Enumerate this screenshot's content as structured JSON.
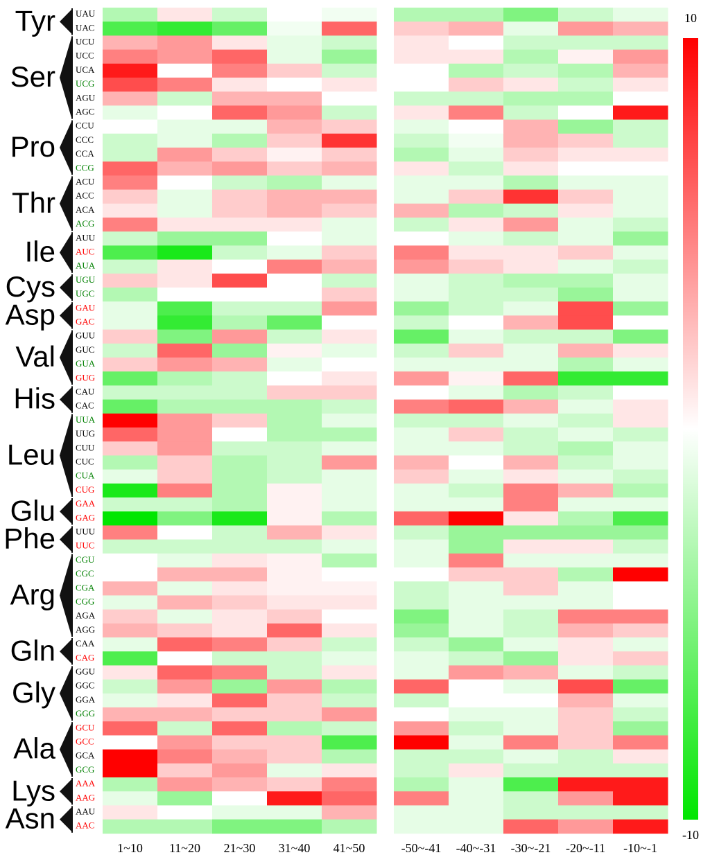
{
  "chart_data": {
    "type": "heatmap",
    "categories": [
      "1~10",
      "11~20",
      "21~30",
      "31~40",
      "41~50",
      "-50~-41",
      "-40~-31",
      "-30~-21",
      "-20~-11",
      "-10~-1"
    ],
    "colormap": {
      "low": "#00e600",
      "mid": "#ffffff",
      "high": "#ff0000"
    },
    "colorbar": {
      "lim": [
        -10,
        10
      ],
      "ticks": [
        10,
        -10
      ]
    },
    "groups": [
      {
        "name": "Tyr",
        "rows": [
          {
            "codon": "UAU",
            "color": "#000000",
            "values": [
              -3,
              1,
              -2,
              0,
              -0.5,
              -3,
              -3,
              -5,
              -2,
              -1
            ]
          },
          {
            "codon": "UAC",
            "color": "#000000",
            "values": [
              -7,
              -8,
              -6,
              -0.5,
              6,
              2,
              3,
              -1,
              4,
              3
            ]
          }
        ]
      },
      {
        "name": "Ser",
        "rows": [
          {
            "codon": "UCU",
            "color": "#000000",
            "values": [
              3,
              4,
              1,
              -1,
              -2,
              1,
              0,
              -2,
              -2,
              -2
            ]
          },
          {
            "codon": "UCC",
            "color": "#000000",
            "values": [
              5,
              4,
              6,
              -1,
              -4,
              1,
              1,
              -3,
              0.5,
              4
            ]
          },
          {
            "codon": "UCA",
            "color": "#000000",
            "values": [
              9,
              0,
              5,
              2,
              -2,
              0,
              -3,
              -2,
              -3,
              3
            ]
          },
          {
            "codon": "UCG",
            "color": "#008000",
            "values": [
              7,
              5,
              1,
              0,
              1,
              0,
              2,
              1,
              -2,
              1
            ]
          },
          {
            "codon": "AGU",
            "color": "#000000",
            "values": [
              3,
              -2,
              3,
              3,
              0,
              -2,
              -2,
              -3,
              -3,
              0
            ]
          },
          {
            "codon": "AGC",
            "color": "#000000",
            "values": [
              -1,
              0,
              6,
              4,
              -2,
              1,
              5,
              -2,
              0,
              9
            ]
          }
        ]
      },
      {
        "name": "Pro",
        "rows": [
          {
            "codon": "CCU",
            "color": "#000000",
            "values": [
              0,
              -1,
              -1,
              3,
              2,
              -1,
              0,
              3,
              -4,
              -2
            ]
          },
          {
            "codon": "CCC",
            "color": "#000000",
            "values": [
              -2,
              -1,
              -3,
              2,
              8,
              -2,
              -0.5,
              3,
              2,
              -2
            ]
          },
          {
            "codon": "CCA",
            "color": "#000000",
            "values": [
              -2,
              4,
              2,
              0.5,
              2,
              -3,
              -1,
              2,
              1,
              1
            ]
          },
          {
            "codon": "CCG",
            "color": "#008000",
            "values": [
              6,
              3,
              4,
              2,
              3,
              1,
              -2,
              1,
              0,
              0
            ]
          }
        ]
      },
      {
        "name": "Thr",
        "rows": [
          {
            "codon": "ACU",
            "color": "#000000",
            "values": [
              5,
              0,
              -2,
              -3,
              -1,
              -1,
              -1,
              -3,
              -1,
              -1
            ]
          },
          {
            "codon": "ACC",
            "color": "#000000",
            "values": [
              2,
              -1,
              2,
              3,
              3,
              -1,
              2,
              8,
              2,
              -1
            ]
          },
          {
            "codon": "ACA",
            "color": "#000000",
            "values": [
              1,
              -1,
              2,
              3,
              2,
              3,
              -3,
              -2,
              1,
              -1
            ]
          },
          {
            "codon": "ACG",
            "color": "#008000",
            "values": [
              5,
              1,
              1,
              1,
              -1,
              -2,
              1,
              4,
              -1,
              -2
            ]
          }
        ]
      },
      {
        "name": "Ile",
        "rows": [
          {
            "codon": "AUU",
            "color": "#000000",
            "values": [
              -2,
              -4,
              -4,
              0,
              -1,
              0,
              -1,
              -2,
              -1,
              -4
            ]
          },
          {
            "codon": "AUC",
            "color": "#ff0000",
            "values": [
              -7,
              -9,
              -2,
              -1,
              2,
              5,
              1,
              1,
              2,
              -1
            ]
          },
          {
            "codon": "AUA",
            "color": "#008000",
            "values": [
              -2,
              1,
              0,
              5,
              3,
              4,
              2,
              1,
              -1,
              -2
            ]
          }
        ]
      },
      {
        "name": "Cys",
        "rows": [
          {
            "codon": "UGU",
            "color": "#008000",
            "values": [
              2,
              1,
              7,
              0,
              -2,
              -1,
              -2,
              -3,
              -3,
              -1
            ]
          },
          {
            "codon": "UGC",
            "color": "#008000",
            "values": [
              -3,
              0,
              0,
              0,
              2,
              -1,
              -2,
              -2,
              -4,
              -1
            ]
          }
        ]
      },
      {
        "name": "Asp",
        "rows": [
          {
            "codon": "GAU",
            "color": "#ff0000",
            "values": [
              -1,
              -7,
              -2,
              -2,
              4,
              -4,
              -2,
              -1,
              7,
              -4
            ]
          },
          {
            "codon": "GAC",
            "color": "#ff0000",
            "values": [
              -1,
              -8,
              -3,
              -6,
              0,
              -2,
              0,
              3,
              7,
              0
            ]
          }
        ]
      },
      {
        "name": "Val",
        "rows": [
          {
            "codon": "GUU",
            "color": "#000000",
            "values": [
              2,
              -5,
              4,
              -2,
              1,
              -6,
              -1,
              -2,
              -2,
              -5
            ]
          },
          {
            "codon": "GUC",
            "color": "#000000",
            "values": [
              -2,
              6,
              -4,
              0.5,
              -1,
              -2,
              2,
              -1,
              3,
              1
            ]
          },
          {
            "codon": "GUA",
            "color": "#008000",
            "values": [
              2,
              4,
              3,
              -1,
              0,
              -1,
              -1,
              -1,
              -3,
              -1
            ]
          },
          {
            "codon": "GUG",
            "color": "#ff0000",
            "values": [
              -6,
              -3,
              -2,
              0,
              1,
              4,
              0.5,
              6,
              -8,
              -8
            ]
          }
        ]
      },
      {
        "name": "His",
        "rows": [
          {
            "codon": "CAU",
            "color": "#000000",
            "values": [
              -2,
              -2,
              -2,
              2,
              2,
              0,
              -1,
              -3,
              -2,
              0
            ]
          },
          {
            "codon": "CAC",
            "color": "#000000",
            "values": [
              -6,
              -3,
              -3,
              -3,
              -2,
              5,
              6,
              3,
              -1,
              1
            ]
          }
        ]
      },
      {
        "name": "Leu",
        "rows": [
          {
            "codon": "UUA",
            "color": "#008000",
            "values": [
              10,
              4,
              2,
              -3,
              -1,
              -2,
              -2,
              -1,
              -2,
              1
            ]
          },
          {
            "codon": "UUG",
            "color": "#000000",
            "values": [
              6,
              4,
              0,
              -3,
              -3,
              -1,
              2,
              -2,
              -1,
              -2
            ]
          },
          {
            "codon": "CUU",
            "color": "#000000",
            "values": [
              2,
              4,
              -2,
              -2,
              -1,
              -1,
              -1,
              -2,
              -3,
              -1
            ]
          },
          {
            "codon": "CUC",
            "color": "#000000",
            "values": [
              -3,
              2,
              -3,
              -2,
              4,
              3,
              0,
              3,
              -2,
              -1
            ]
          },
          {
            "codon": "CUA",
            "color": "#008000",
            "values": [
              -1,
              2,
              -3,
              -2,
              -1,
              2,
              -1,
              1,
              -1,
              -2
            ]
          },
          {
            "codon": "CUG",
            "color": "#ff0000",
            "values": [
              -9,
              5,
              -3,
              0.5,
              -1,
              -1,
              -2,
              5,
              3,
              -3
            ]
          }
        ]
      },
      {
        "name": "Glu",
        "rows": [
          {
            "codon": "GAA",
            "color": "#ff0000",
            "values": [
              -2,
              -2,
              -3,
              0.5,
              -1,
              -1,
              -1,
              5,
              -1,
              -1
            ]
          },
          {
            "codon": "GAG",
            "color": "#ff0000",
            "values": [
              -10,
              -5,
              -9,
              0.5,
              -3,
              6,
              10,
              1,
              -3,
              -7
            ]
          }
        ]
      },
      {
        "name": "Phe",
        "rows": [
          {
            "codon": "UUU",
            "color": "#000000",
            "values": [
              5,
              0,
              -2,
              3,
              1,
              -2,
              -4,
              -4,
              -4,
              -4
            ]
          },
          {
            "codon": "UUC",
            "color": "#ff0000",
            "values": [
              -2,
              -2,
              -2,
              -2,
              -1,
              -1,
              -4,
              1,
              1,
              -2
            ]
          }
        ]
      },
      {
        "name": "Arg",
        "rows": [
          {
            "codon": "CGU",
            "color": "#008000",
            "values": [
              0,
              -1,
              1,
              0.5,
              -3,
              -1,
              5,
              -1,
              -1,
              -1
            ]
          },
          {
            "codon": "CGC",
            "color": "#008000",
            "values": [
              0,
              3,
              3,
              0.5,
              0,
              0,
              2,
              2,
              -3,
              10
            ]
          },
          {
            "codon": "CGA",
            "color": "#008000",
            "values": [
              3,
              -1,
              1,
              0.5,
              0.5,
              -2,
              -1,
              2,
              -1,
              0
            ]
          },
          {
            "codon": "CGG",
            "color": "#008000",
            "values": [
              -1,
              3,
              2,
              1,
              1,
              -2,
              -1,
              -1,
              -1,
              0
            ]
          },
          {
            "codon": "AGA",
            "color": "#000000",
            "values": [
              2,
              -1,
              1,
              2,
              0,
              -5,
              -1,
              -2,
              5,
              5
            ]
          },
          {
            "codon": "AGG",
            "color": "#000000",
            "values": [
              3,
              2,
              1,
              6,
              1,
              -4,
              -1,
              -2,
              3,
              2
            ]
          }
        ]
      },
      {
        "name": "Gln",
        "rows": [
          {
            "codon": "CAA",
            "color": "#000000",
            "values": [
              -1,
              6,
              5,
              2,
              -2,
              -2,
              -4,
              -1,
              1,
              -1
            ]
          },
          {
            "codon": "CAG",
            "color": "#ff0000",
            "values": [
              -7,
              0,
              -2,
              -2,
              -1,
              -1,
              -2,
              -4,
              1,
              2
            ]
          }
        ]
      },
      {
        "name": "Gly",
        "rows": [
          {
            "codon": "GGU",
            "color": "#000000",
            "values": [
              1,
              6,
              5,
              -2,
              1,
              -1,
              4,
              3,
              -1,
              -2
            ]
          },
          {
            "codon": "GGC",
            "color": "#000000",
            "values": [
              -2,
              4,
              -4,
              4,
              -3,
              6,
              0,
              -1,
              7,
              -6
            ]
          },
          {
            "codon": "GGA",
            "color": "#000000",
            "values": [
              -1,
              1,
              6,
              2,
              -2,
              -2,
              0,
              0,
              3,
              -1
            ]
          },
          {
            "codon": "GGG",
            "color": "#008000",
            "values": [
              3,
              3,
              2,
              2,
              4,
              0,
              -1,
              -1,
              2,
              -2
            ]
          }
        ]
      },
      {
        "name": "Ala",
        "rows": [
          {
            "codon": "GCU",
            "color": "#ff0000",
            "values": [
              6,
              -2,
              6,
              -3,
              -2,
              4,
              -2,
              -1,
              2,
              -4
            ]
          },
          {
            "codon": "GCC",
            "color": "#ff0000",
            "values": [
              0,
              4,
              2,
              2,
              -7,
              10,
              -1,
              5,
              2,
              5
            ]
          },
          {
            "codon": "GCA",
            "color": "#000000",
            "values": [
              10,
              5,
              3,
              2,
              -3,
              -2,
              -2,
              -1,
              -2,
              1
            ]
          },
          {
            "codon": "GCG",
            "color": "#008000",
            "values": [
              10,
              2,
              4,
              -1,
              1,
              -2,
              1,
              -2,
              -2,
              -2
            ]
          }
        ]
      },
      {
        "name": "Lys",
        "rows": [
          {
            "codon": "AAA",
            "color": "#ff0000",
            "values": [
              -3,
              4,
              3,
              2,
              5,
              -3,
              -1,
              -7,
              9,
              9
            ]
          },
          {
            "codon": "AAG",
            "color": "#ff0000",
            "values": [
              -1,
              -4,
              0,
              9,
              6,
              5,
              -1,
              -2,
              4,
              9
            ]
          }
        ]
      },
      {
        "name": "Asn",
        "rows": [
          {
            "codon": "AAU",
            "color": "#000000",
            "values": [
              1,
              0,
              -1,
              -1,
              3,
              -1,
              -1,
              -2,
              -2,
              -2
            ]
          },
          {
            "codon": "AAC",
            "color": "#ff0000",
            "values": [
              -3,
              -3,
              -5,
              -5,
              -3,
              -1,
              -1,
              6,
              4,
              9
            ]
          }
        ]
      }
    ]
  }
}
